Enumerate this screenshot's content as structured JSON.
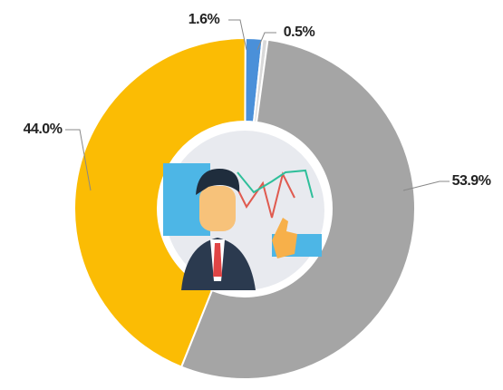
{
  "chart_data": {
    "type": "donut",
    "categories": [
      null,
      null,
      null,
      null
    ],
    "values": [
      1.6,
      0.5,
      53.9,
      44.0
    ],
    "value_labels": [
      "1.6%",
      "0.5%",
      "53.9%",
      "44.0%"
    ],
    "colors": [
      "#4a90d9",
      "#d9d9d9",
      "#a5a5a5",
      "#fbbc04"
    ]
  }
}
